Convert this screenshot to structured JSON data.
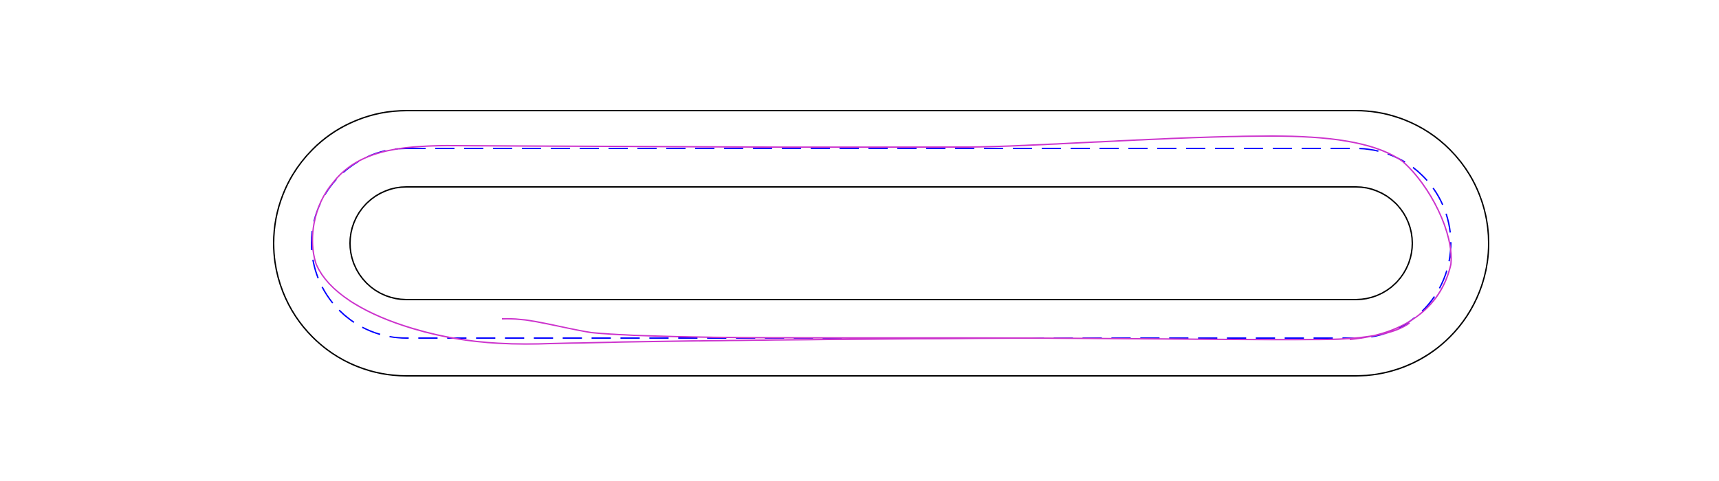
{
  "diagram": {
    "type": "track-trajectory-plot",
    "background": "#ffffff",
    "track": {
      "shape": "stadium",
      "boundary_color": "#000000",
      "boundaries": [
        {
          "name": "outer-boundary",
          "style": "solid"
        },
        {
          "name": "inner-boundary",
          "style": "solid"
        }
      ]
    },
    "paths": [
      {
        "name": "reference-centerline",
        "color": "#0000ff",
        "style": "dashed"
      },
      {
        "name": "driven-trajectory",
        "color": "#cc33cc",
        "style": "solid"
      }
    ]
  }
}
